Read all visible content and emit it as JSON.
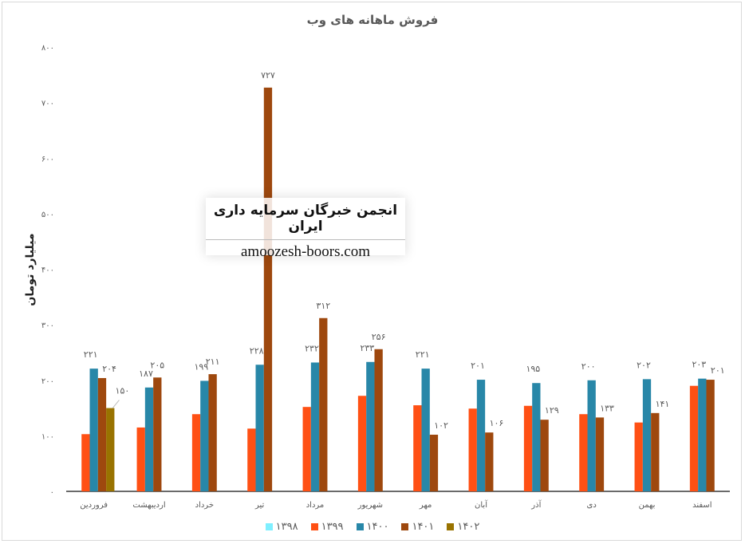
{
  "chart_data": {
    "type": "bar",
    "title": "فروش ماهانه های وب",
    "ylabel": "میلیارد تومان",
    "xlabel": "",
    "ylim": [
      0,
      800
    ],
    "yticks": [
      "۰",
      "۱۰۰",
      "۲۰۰",
      "۳۰۰",
      "۴۰۰",
      "۵۰۰",
      "۶۰۰",
      "۷۰۰",
      "۸۰۰"
    ],
    "grid": false,
    "legend_position": "bottom",
    "categories": [
      "فروردین",
      "اردیبهشت",
      "خرداد",
      "تیر",
      "مرداد",
      "شهریور",
      "مهر",
      "آبان",
      "آذر",
      "دی",
      "بهمن",
      "اسفند"
    ],
    "series": [
      {
        "name": "۱۳۹۸",
        "color": "#7FEFFF",
        "values": [
          null,
          null,
          null,
          null,
          null,
          null,
          null,
          null,
          null,
          null,
          null,
          null
        ],
        "labels": []
      },
      {
        "name": "۱۳۹۹",
        "color": "#FF5014",
        "values": [
          103,
          115,
          139,
          113,
          152,
          172,
          155,
          149,
          154,
          139,
          124,
          190
        ],
        "labels": []
      },
      {
        "name": "۱۴۰۰",
        "color": "#2887A8",
        "values": [
          221,
          187,
          199,
          228,
          232,
          233,
          221,
          201,
          195,
          200,
          202,
          203
        ],
        "labels": [
          "۲۲۱",
          "۱۸۷",
          "۱۹۹",
          "۲۲۸",
          "۲۳۲",
          "۲۳۳",
          "۲۲۱",
          "۲۰۱",
          "۱۹۵",
          "۲۰۰",
          "۲۰۲",
          "۲۰۳"
        ]
      },
      {
        "name": "۱۴۰۱",
        "color": "#9E480E",
        "values": [
          204,
          205,
          211,
          727,
          312,
          256,
          102,
          106,
          129,
          133,
          141,
          201
        ],
        "labels": [
          "۲۰۴",
          "۲۰۵",
          "۲۱۱",
          "۷۲۷",
          "۳۱۲",
          "۲۵۶",
          "۱۰۲",
          "۱۰۶",
          "۱۲۹",
          "۱۳۳",
          "۱۴۱",
          "۲۰۱"
        ]
      },
      {
        "name": "۱۴۰۲",
        "color": "#997300",
        "values": [
          150,
          null,
          null,
          null,
          null,
          null,
          null,
          null,
          null,
          null,
          null,
          null
        ],
        "labels": [
          "۱۵۰"
        ]
      }
    ]
  },
  "watermark": {
    "line1": "انجمن خبرگان سرمایه داری ایران",
    "line2": "amoozesh-boors.com"
  }
}
